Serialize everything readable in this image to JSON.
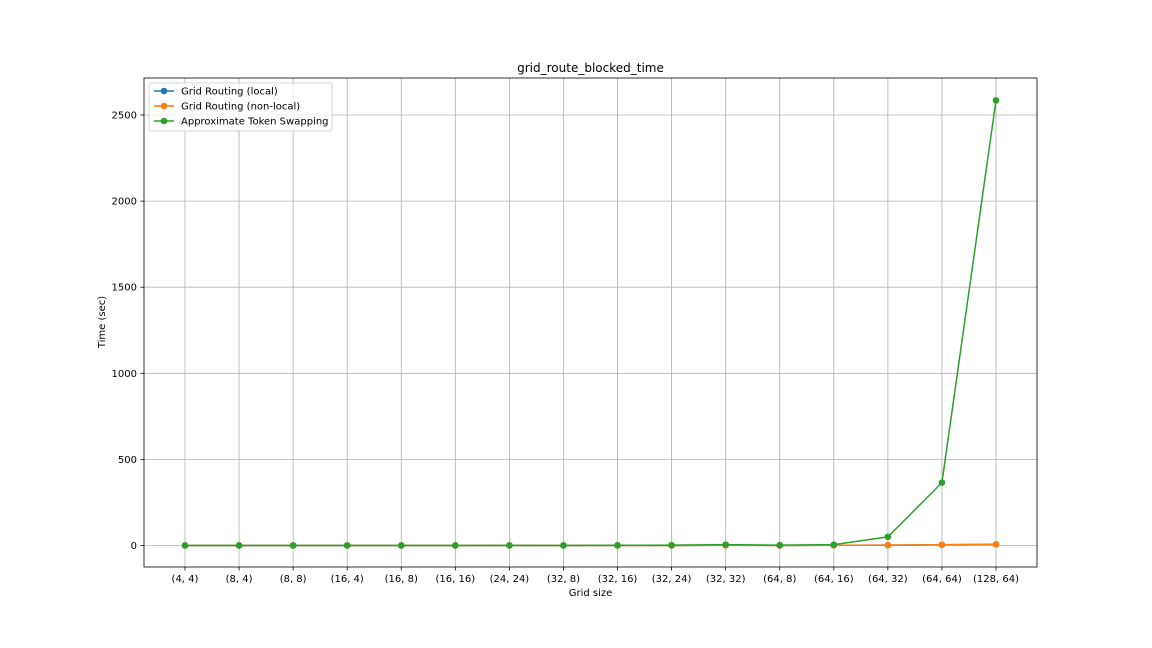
{
  "chart_data": {
    "type": "line",
    "title": "grid_route_blocked_time",
    "xlabel": "Grid size",
    "ylabel": "Time (sec)",
    "categories": [
      "(4, 4)",
      "(8, 4)",
      "(8, 8)",
      "(16, 4)",
      "(16, 8)",
      "(16, 16)",
      "(24, 24)",
      "(32, 8)",
      "(32, 16)",
      "(32, 24)",
      "(32, 32)",
      "(64, 8)",
      "(64, 16)",
      "(64, 32)",
      "(64, 64)",
      "(128, 64)"
    ],
    "ylim": [
      -125,
      2715
    ],
    "yticks": [
      0,
      500,
      1000,
      1500,
      2000,
      2500
    ],
    "grid": true,
    "legend_position": "top-left",
    "series": [
      {
        "name": "Grid Routing (local)",
        "color": "#1f77b4",
        "values": [
          0,
          0,
          0,
          0,
          0,
          0,
          0,
          0,
          0,
          0,
          1,
          0,
          1,
          2,
          4,
          7
        ]
      },
      {
        "name": "Grid Routing (non-local)",
        "color": "#ff7f0e",
        "values": [
          0,
          0,
          0,
          0,
          0,
          0,
          0,
          0,
          0,
          0,
          1,
          0,
          1,
          2,
          4,
          7
        ]
      },
      {
        "name": "Approximate Token Swapping",
        "color": "#2ca02c",
        "values": [
          0,
          0,
          0,
          0,
          0,
          0,
          0.5,
          0,
          1,
          2,
          5,
          2,
          5,
          50,
          365,
          2585
        ]
      }
    ]
  }
}
